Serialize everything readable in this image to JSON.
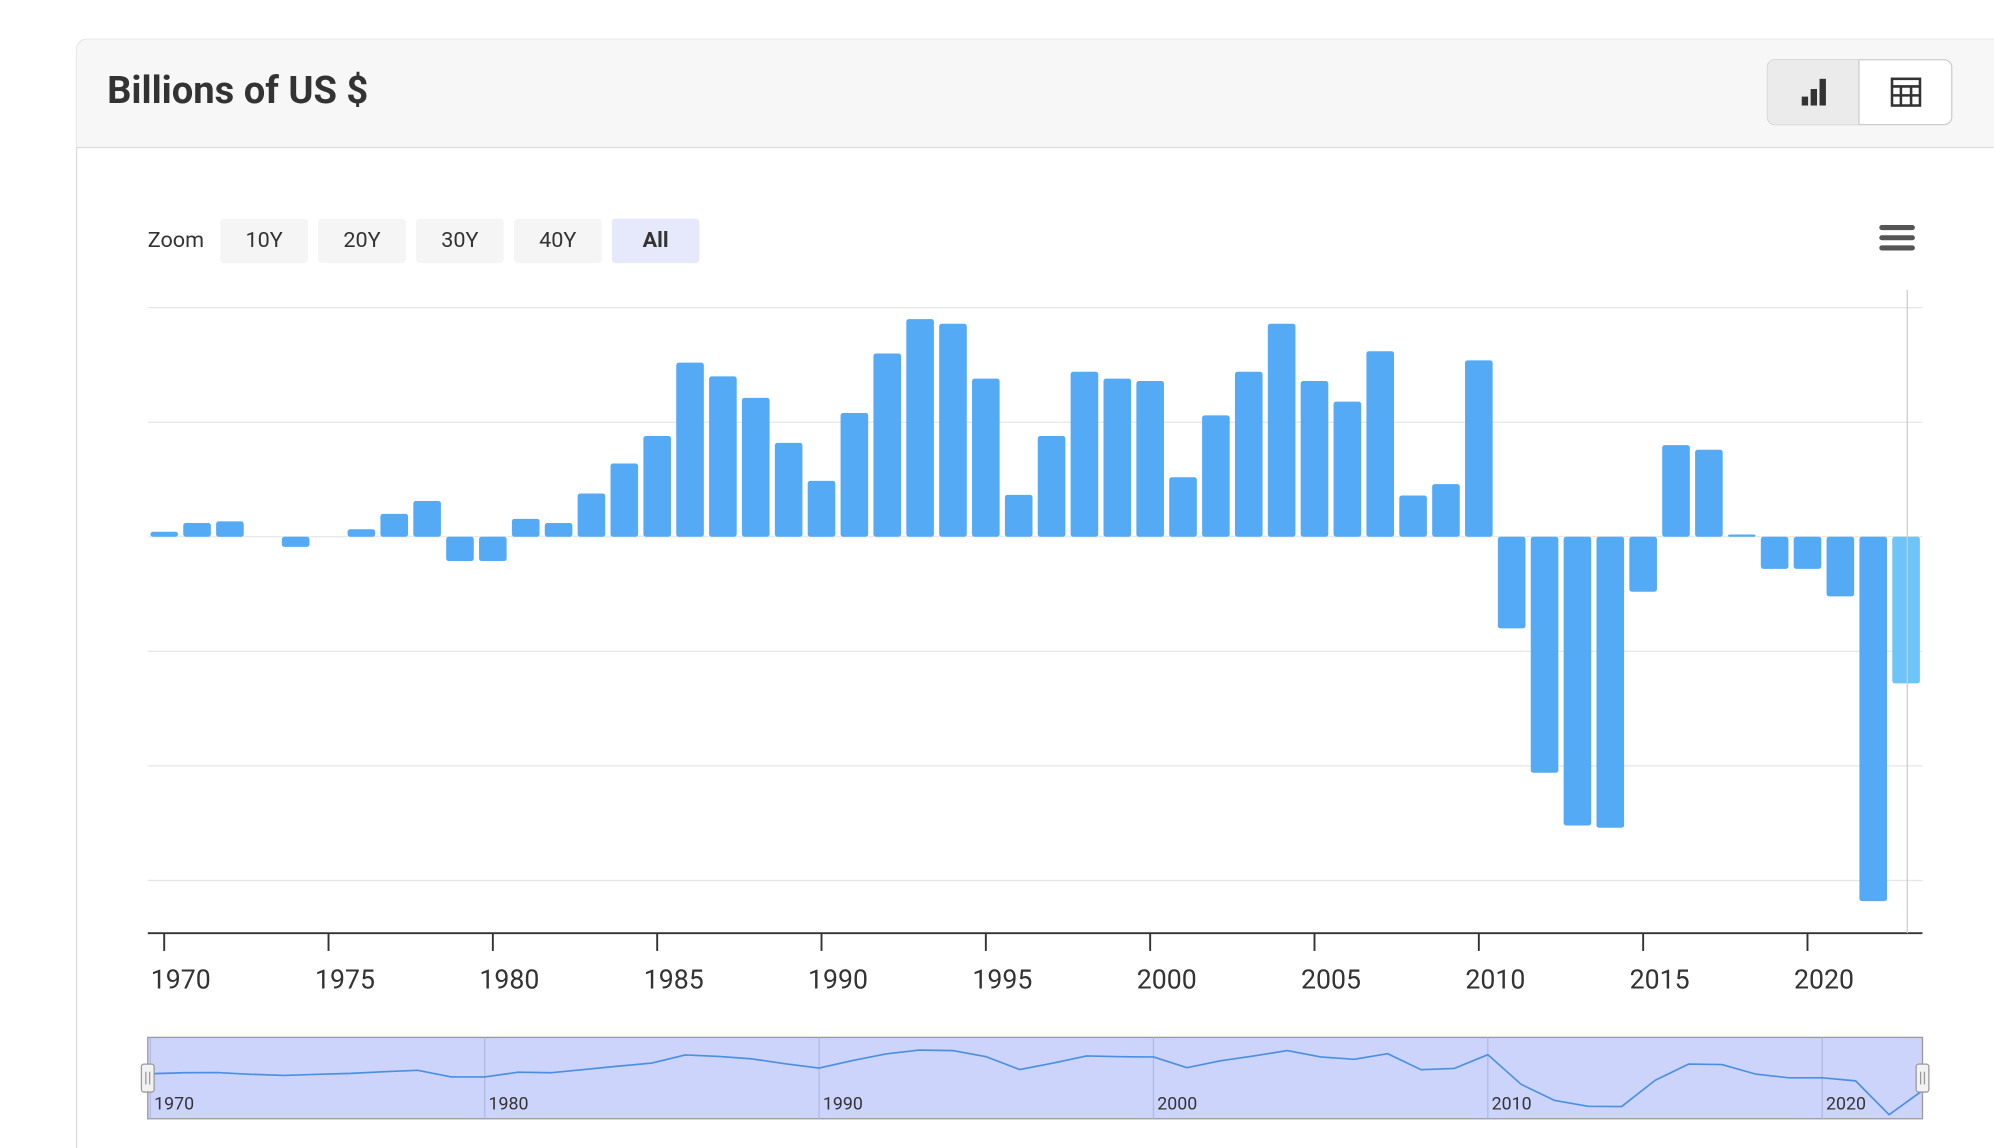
{
  "header": {
    "title": "Billions of US $"
  },
  "zoom": {
    "label": "Zoom",
    "buttons": [
      "10Y",
      "20Y",
      "30Y",
      "40Y",
      "All"
    ],
    "selected": "All"
  },
  "chart_data": {
    "type": "bar",
    "x": [
      1970,
      1971,
      1972,
      1973,
      1974,
      1975,
      1976,
      1977,
      1978,
      1979,
      1980,
      1981,
      1982,
      1983,
      1984,
      1985,
      1986,
      1987,
      1988,
      1989,
      1990,
      1991,
      1992,
      1993,
      1994,
      1995,
      1996,
      1997,
      1998,
      1999,
      2000,
      2001,
      2002,
      2003,
      2004,
      2005,
      2006,
      2007,
      2008,
      2009,
      2010,
      2011,
      2012,
      2013,
      2014,
      2015,
      2016,
      2017,
      2018,
      2019,
      2020,
      2021,
      2022,
      2023
    ],
    "values": [
      2.2,
      6,
      6.7,
      0,
      -4.4,
      0,
      3.3,
      10,
      15.6,
      -10.6,
      -10.6,
      7.8,
      6,
      18.9,
      32,
      44,
      76,
      70,
      60.6,
      41,
      24.4,
      54,
      80,
      95,
      93,
      69,
      18.3,
      44,
      72,
      69,
      68,
      26,
      53,
      72,
      93,
      68,
      59,
      81,
      18,
      23,
      77,
      -40,
      -103,
      -126,
      -127,
      -24,
      40,
      38,
      1,
      -14,
      -14,
      -26,
      -159,
      -64
    ],
    "color": "#55aaf5",
    "last_color": "#6cc4f8",
    "xlim": [
      1969.5,
      2023.5
    ],
    "xticks": [
      1970,
      1975,
      1980,
      1985,
      1990,
      1995,
      2000,
      2005,
      2010,
      2015,
      2020
    ],
    "ylim": [
      -173,
      100
    ],
    "yticks": [
      -150,
      -100,
      -50,
      0,
      50,
      100
    ],
    "show_ytick_labels": false,
    "grid": true,
    "navigator": {
      "xlim": [
        1970,
        2023
      ],
      "xticks": [
        1970,
        1980,
        1990,
        2000,
        2010,
        2020
      ]
    }
  }
}
